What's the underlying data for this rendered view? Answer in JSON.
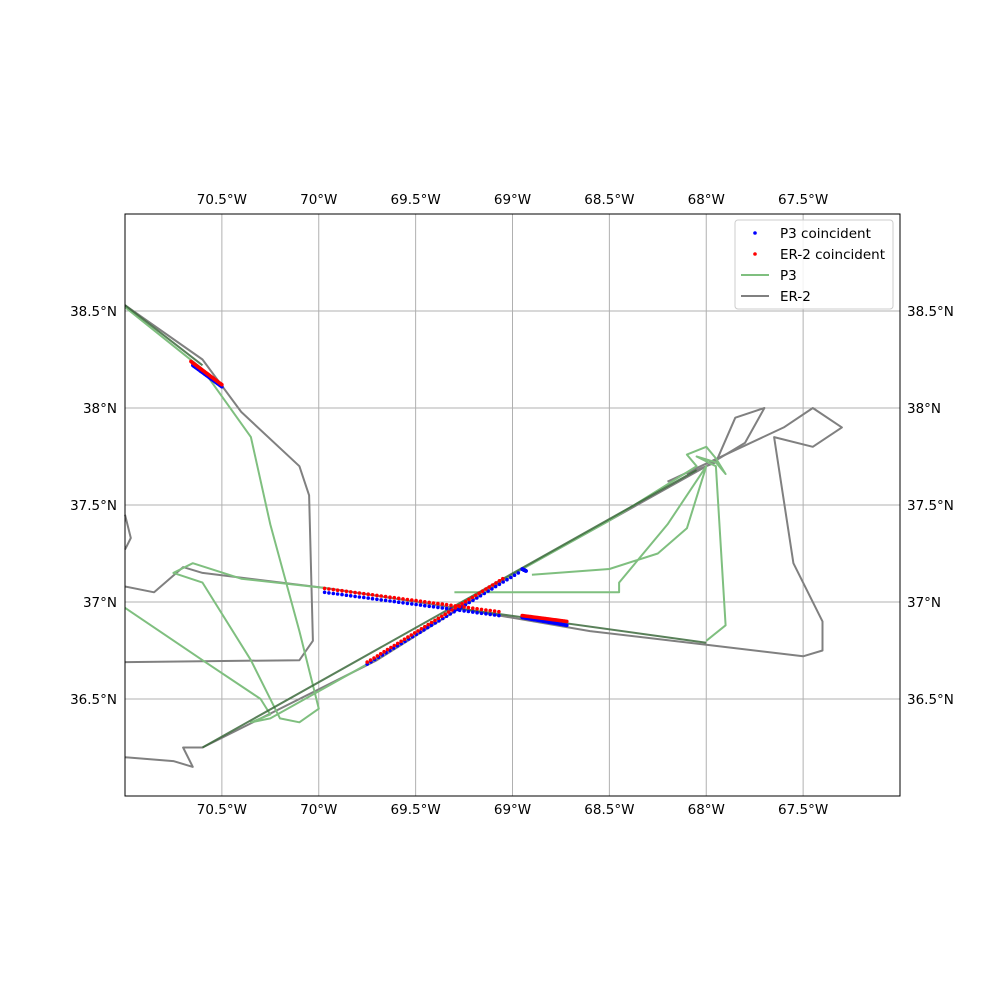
{
  "chart_data": {
    "type": "map-line-scatter",
    "x_ticks": [
      "70.5°W",
      "70°W",
      "69.5°W",
      "69°W",
      "68.5°W",
      "68°W",
      "67.5°W"
    ],
    "x_tick_values": [
      -70.5,
      -70.0,
      -69.5,
      -69.0,
      -68.5,
      -68.0,
      -67.5
    ],
    "y_ticks": [
      "38.5°N",
      "38°N",
      "37.5°N",
      "37°N",
      "36.5°N"
    ],
    "y_tick_values": [
      38.5,
      38.0,
      37.5,
      37.0,
      36.5
    ],
    "xlim": [
      -71.0,
      -67.0
    ],
    "ylim": [
      36.0,
      39.0
    ],
    "grid": true,
    "legend_position": "top-right",
    "legend": [
      {
        "label": "P3 coincident",
        "kind": "point",
        "color": "#0000ff"
      },
      {
        "label": "ER-2 coincident",
        "kind": "point",
        "color": "#ff0000"
      },
      {
        "label": "P3",
        "kind": "line",
        "color": "#7fbf7f"
      },
      {
        "label": "ER-2",
        "kind": "line",
        "color": "#808080"
      }
    ],
    "series": [
      {
        "name": "ER-2",
        "color": "#808080",
        "path": [
          [
            -71.0,
            36.2
          ],
          [
            -70.75,
            36.18
          ],
          [
            -70.65,
            36.15
          ],
          [
            -70.7,
            36.25
          ],
          [
            -70.6,
            36.25
          ],
          [
            -69.7,
            36.7
          ],
          [
            -68.95,
            37.17
          ],
          [
            -68.5,
            37.42
          ],
          [
            -68.0,
            37.7
          ],
          [
            -67.8,
            37.82
          ],
          [
            -67.7,
            38.0
          ],
          [
            -67.85,
            37.95
          ],
          [
            -67.95,
            37.72
          ],
          [
            -68.1,
            37.66
          ]
        ]
      },
      {
        "name": "ER-2",
        "color": "#808080",
        "path": [
          [
            -68.2,
            37.62
          ],
          [
            -67.6,
            37.9
          ],
          [
            -67.45,
            38.0
          ],
          [
            -67.3,
            37.9
          ],
          [
            -67.45,
            37.8
          ],
          [
            -67.65,
            37.85
          ],
          [
            -67.55,
            37.2
          ],
          [
            -67.4,
            36.9
          ],
          [
            -67.4,
            36.75
          ],
          [
            -67.5,
            36.72
          ],
          [
            -68.0,
            36.78
          ],
          [
            -68.6,
            36.85
          ],
          [
            -69.3,
            36.97
          ],
          [
            -69.95,
            37.07
          ],
          [
            -70.6,
            37.15
          ],
          [
            -70.7,
            37.18
          ],
          [
            -70.85,
            37.05
          ],
          [
            -71.0,
            37.08
          ]
        ]
      },
      {
        "name": "ER-2",
        "color": "#808080",
        "path": [
          [
            -71.0,
            37.45
          ],
          [
            -70.97,
            37.33
          ],
          [
            -71.0,
            37.27
          ]
        ]
      },
      {
        "name": "ER-2",
        "color": "#808080",
        "path": [
          [
            -71.0,
            38.53
          ],
          [
            -70.6,
            38.25
          ],
          [
            -70.4,
            37.98
          ],
          [
            -70.1,
            37.7
          ],
          [
            -70.05,
            37.55
          ],
          [
            -70.03,
            36.8
          ],
          [
            -70.1,
            36.7
          ],
          [
            -71.0,
            36.69
          ]
        ]
      },
      {
        "name": "P3",
        "color": "#7fbf7f",
        "path": [
          [
            -71.0,
            38.52
          ],
          [
            -70.6,
            38.2
          ],
          [
            -70.35,
            37.85
          ],
          [
            -70.25,
            37.4
          ],
          [
            -70.1,
            36.85
          ],
          [
            -70.0,
            36.45
          ],
          [
            -70.1,
            36.38
          ],
          [
            -70.2,
            36.4
          ],
          [
            -70.35,
            36.7
          ],
          [
            -70.6,
            37.1
          ],
          [
            -70.75,
            37.15
          ],
          [
            -70.65,
            37.2
          ],
          [
            -70.4,
            37.12
          ],
          [
            -69.95,
            37.07
          ]
        ]
      },
      {
        "name": "P3",
        "color": "#7fbf7f",
        "path": [
          [
            -71.0,
            36.97
          ],
          [
            -70.6,
            36.7
          ],
          [
            -70.3,
            36.5
          ],
          [
            -70.25,
            36.42
          ],
          [
            -70.35,
            36.38
          ],
          [
            -70.25,
            36.4
          ],
          [
            -69.75,
            36.68
          ],
          [
            -69.3,
            36.97
          ],
          [
            -68.95,
            37.17
          ],
          [
            -68.5,
            37.42
          ],
          [
            -68.05,
            37.7
          ],
          [
            -68.1,
            37.76
          ],
          [
            -68.0,
            37.8
          ],
          [
            -67.95,
            37.74
          ],
          [
            -67.9,
            37.66
          ],
          [
            -67.95,
            37.72
          ],
          [
            -68.05,
            37.75
          ],
          [
            -67.95,
            37.7
          ],
          [
            -67.9,
            36.88
          ],
          [
            -68.0,
            36.8
          ]
        ]
      },
      {
        "name": "P3",
        "color": "#7fbf7f",
        "path": [
          [
            -68.9,
            37.14
          ],
          [
            -68.5,
            37.17
          ],
          [
            -68.25,
            37.25
          ],
          [
            -68.1,
            37.38
          ],
          [
            -68.0,
            37.7
          ],
          [
            -68.2,
            37.4
          ],
          [
            -68.45,
            37.1
          ],
          [
            -68.45,
            37.05
          ],
          [
            -69.3,
            37.05
          ]
        ]
      }
    ],
    "points": [
      {
        "name": "P3 coincident",
        "color": "#0000ff",
        "segments": [
          [
            [
              -70.65,
              38.22
            ],
            [
              -70.5,
              38.11
            ]
          ],
          [
            [
              -69.75,
              36.68
            ],
            [
              -68.97,
              37.15
            ]
          ],
          [
            [
              -69.97,
              37.05
            ],
            [
              -69.07,
              36.93
            ]
          ],
          [
            [
              -68.95,
              36.92
            ],
            [
              -68.72,
              36.88
            ]
          ],
          [
            [
              -68.95,
              37.17
            ],
            [
              -68.93,
              37.16
            ]
          ]
        ]
      },
      {
        "name": "ER-2 coincident",
        "color": "#ff0000",
        "segments": [
          [
            [
              -70.66,
              38.24
            ],
            [
              -70.5,
              38.12
            ]
          ],
          [
            [
              -69.75,
              36.69
            ],
            [
              -69.05,
              37.12
            ]
          ],
          [
            [
              -69.97,
              37.07
            ],
            [
              -69.07,
              36.95
            ]
          ],
          [
            [
              -68.95,
              36.93
            ],
            [
              -68.72,
              36.9
            ]
          ]
        ]
      }
    ]
  }
}
